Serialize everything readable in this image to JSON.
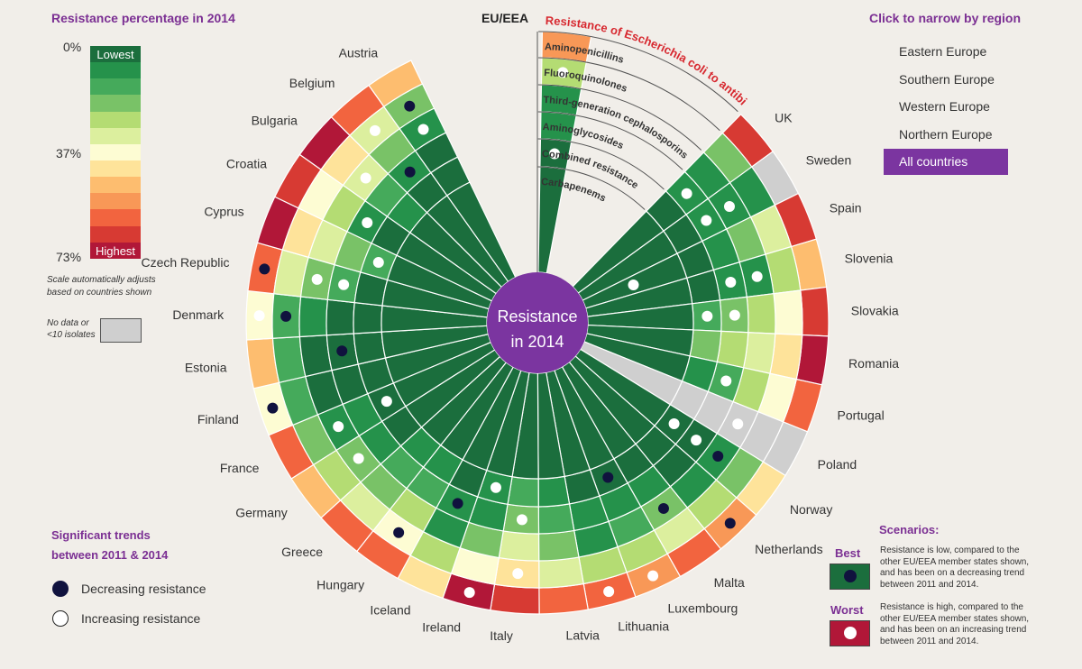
{
  "colors": {
    "scale": [
      "#1b6e3d",
      "#25924b",
      "#45aa5b",
      "#79c267",
      "#b4dc73",
      "#dcef9e",
      "#fdfcd3",
      "#fee39a",
      "#fdbd6f",
      "#f89857",
      "#f2643f",
      "#d73a33",
      "#b11738"
    ],
    "grey": "#cfcfcf",
    "center": "#7b35a0",
    "accent_red": "#d7282f"
  },
  "legend": {
    "title": "Resistance percentage in 2014",
    "label_top": "0%",
    "label_mid": "37%",
    "label_bottom": "73%",
    "lowest": "Lowest",
    "highest": "Highest",
    "note": "Scale automatically adjusts based on countries shown",
    "nodata": "No data or <10 isolates"
  },
  "regions": {
    "title": "Click to narrow by region",
    "items": [
      "Eastern Europe",
      "Southern Europe",
      "Western Europe",
      "Northern Europe",
      "All countries"
    ],
    "active": "All countries"
  },
  "trends": {
    "title_line1": "Significant trends",
    "title_line2": "between 2011 & 2014",
    "decreasing": "Decreasing resistance",
    "increasing": "Increasing resistance"
  },
  "scenarios": {
    "title": "Scenarios:",
    "best_label": "Best",
    "best_desc": "Resistance is low, compared to the other EU/EEA member states shown, and has been on a decreasing trend between 2011 and 2014.",
    "worst_label": "Worst",
    "worst_desc": "Resistance is high, compared to the other EU/EEA member states shown, and has been on an increasing trend between 2011 and 2014."
  },
  "chart_data": {
    "type": "radial-heatmap",
    "title": "Resistance of Escherichia coli to antibiotics:",
    "center_label_line1": "Resistance",
    "center_label_line2": "in 2014",
    "value_units": "color-scale level 0 (lowest) to 12 (highest); -1 = no data",
    "antibiotics": [
      "Aminopenicillins",
      "Fluoroquinolones",
      "Third-generation cephalosporins",
      "Aminoglycosides",
      "Combined resistance",
      "Carbapenems"
    ],
    "countries": [
      "EU/EEA",
      "UK",
      "Sweden",
      "Spain",
      "Slovenia",
      "Slovakia",
      "Romania",
      "Portugal",
      "Poland",
      "Norway",
      "Netherlands",
      "Malta",
      "Luxembourg",
      "Lithuania",
      "Latvia",
      "Italy",
      "Ireland",
      "Iceland",
      "Hungary",
      "Greece",
      "Germany",
      "France",
      "Finland",
      "Estonia",
      "Denmark",
      "Czech Republic",
      "Cyprus",
      "Croatia",
      "Bulgaria",
      "Belgium",
      "Austria"
    ],
    "levels": [
      [
        9,
        4,
        1,
        1,
        0,
        0
      ],
      [
        11,
        3,
        1,
        1,
        0,
        0
      ],
      [
        -1,
        1,
        1,
        1,
        0,
        0
      ],
      [
        11,
        5,
        3,
        1,
        0,
        0
      ],
      [
        8,
        4,
        1,
        1,
        0,
        0
      ],
      [
        11,
        6,
        4,
        3,
        2,
        0
      ],
      [
        12,
        7,
        5,
        4,
        3,
        0
      ],
      [
        10,
        6,
        4,
        2,
        1,
        0
      ],
      [
        -1,
        -1,
        -1,
        -1,
        -1,
        -1
      ],
      [
        7,
        3,
        1,
        0,
        0,
        0
      ],
      [
        9,
        4,
        1,
        0,
        0,
        0
      ],
      [
        10,
        5,
        3,
        1,
        0,
        0
      ],
      [
        9,
        4,
        2,
        1,
        0,
        0
      ],
      [
        10,
        4,
        1,
        1,
        0,
        0
      ],
      [
        10,
        5,
        3,
        2,
        1,
        0
      ],
      [
        11,
        7,
        5,
        3,
        2,
        0
      ],
      [
        12,
        6,
        3,
        1,
        1,
        0
      ],
      [
        7,
        4,
        1,
        1,
        0,
        0
      ],
      [
        10,
        6,
        4,
        2,
        1,
        0
      ],
      [
        10,
        5,
        3,
        2,
        1,
        0
      ],
      [
        8,
        4,
        3,
        1,
        0,
        0
      ],
      [
        10,
        3,
        1,
        1,
        0,
        0
      ],
      [
        6,
        2,
        0,
        0,
        0,
        0
      ],
      [
        8,
        2,
        0,
        0,
        0,
        0
      ],
      [
        6,
        2,
        1,
        0,
        0,
        0
      ],
      [
        10,
        5,
        3,
        2,
        0,
        0
      ],
      [
        12,
        7,
        5,
        3,
        2,
        0
      ],
      [
        11,
        6,
        4,
        1,
        0,
        0
      ],
      [
        12,
        7,
        5,
        2,
        1,
        0
      ],
      [
        10,
        5,
        3,
        1,
        0,
        0
      ],
      [
        8,
        3,
        1,
        0,
        0,
        0
      ]
    ],
    "trends": [
      {
        "country": "EU/EEA",
        "ring": 1,
        "kind": "increasing"
      },
      {
        "country": "EU/EEA",
        "ring": 4,
        "kind": "increasing"
      },
      {
        "country": "UK",
        "ring": 3,
        "kind": "increasing"
      },
      {
        "country": "Sweden",
        "ring": 2,
        "kind": "increasing"
      },
      {
        "country": "Sweden",
        "ring": 3,
        "kind": "increasing"
      },
      {
        "country": "Spain",
        "ring": 5,
        "kind": "increasing"
      },
      {
        "country": "Slovenia",
        "ring": 2,
        "kind": "increasing"
      },
      {
        "country": "Slovenia",
        "ring": 3,
        "kind": "increasing"
      },
      {
        "country": "Slovakia",
        "ring": 3,
        "kind": "increasing"
      },
      {
        "country": "Slovakia",
        "ring": 4,
        "kind": "increasing"
      },
      {
        "country": "Portugal",
        "ring": 3,
        "kind": "increasing"
      },
      {
        "country": "Poland",
        "ring": 2,
        "kind": "increasing"
      },
      {
        "country": "Norway",
        "ring": 4,
        "kind": "increasing"
      },
      {
        "country": "Norway",
        "ring": 3,
        "kind": "increasing"
      },
      {
        "country": "Norway",
        "ring": 2,
        "kind": "decreasing"
      },
      {
        "country": "Netherlands",
        "ring": 0,
        "kind": "decreasing"
      },
      {
        "country": "Malta",
        "ring": 2,
        "kind": "decreasing"
      },
      {
        "country": "Lithuania",
        "ring": 0,
        "kind": "increasing"
      },
      {
        "country": "Luxembourg",
        "ring": 0,
        "kind": "increasing"
      },
      {
        "country": "Luxembourg",
        "ring": 4,
        "kind": "decreasing"
      },
      {
        "country": "Italy",
        "ring": 1,
        "kind": "increasing"
      },
      {
        "country": "Italy",
        "ring": 3,
        "kind": "increasing"
      },
      {
        "country": "Iceland",
        "ring": 3,
        "kind": "decreasing"
      },
      {
        "country": "Ireland",
        "ring": 4,
        "kind": "increasing"
      },
      {
        "country": "Ireland",
        "ring": 0,
        "kind": "increasing"
      },
      {
        "country": "Hungary",
        "ring": 1,
        "kind": "decreasing"
      },
      {
        "country": "France",
        "ring": 2,
        "kind": "increasing"
      },
      {
        "country": "France",
        "ring": 4,
        "kind": "increasing"
      },
      {
        "country": "Germany",
        "ring": 2,
        "kind": "increasing"
      },
      {
        "country": "Finland",
        "ring": 0,
        "kind": "decreasing"
      },
      {
        "country": "Denmark",
        "ring": 0,
        "kind": "increasing"
      },
      {
        "country": "Denmark",
        "ring": 1,
        "kind": "decreasing"
      },
      {
        "country": "Estonia",
        "ring": 3,
        "kind": "decreasing"
      },
      {
        "country": "Czech Republic",
        "ring": 0,
        "kind": "decreasing"
      },
      {
        "country": "Czech Republic",
        "ring": 2,
        "kind": "increasing"
      },
      {
        "country": "Czech Republic",
        "ring": 3,
        "kind": "increasing"
      },
      {
        "country": "Cyprus",
        "ring": 4,
        "kind": "increasing"
      },
      {
        "country": "Croatia",
        "ring": 3,
        "kind": "increasing"
      },
      {
        "country": "Bulgaria",
        "ring": 2,
        "kind": "increasing"
      },
      {
        "country": "Belgium",
        "ring": 3,
        "kind": "decreasing"
      },
      {
        "country": "Belgium",
        "ring": 1,
        "kind": "increasing"
      },
      {
        "country": "Austria",
        "ring": 1,
        "kind": "decreasing"
      },
      {
        "country": "Austria",
        "ring": 2,
        "kind": "increasing"
      }
    ]
  }
}
